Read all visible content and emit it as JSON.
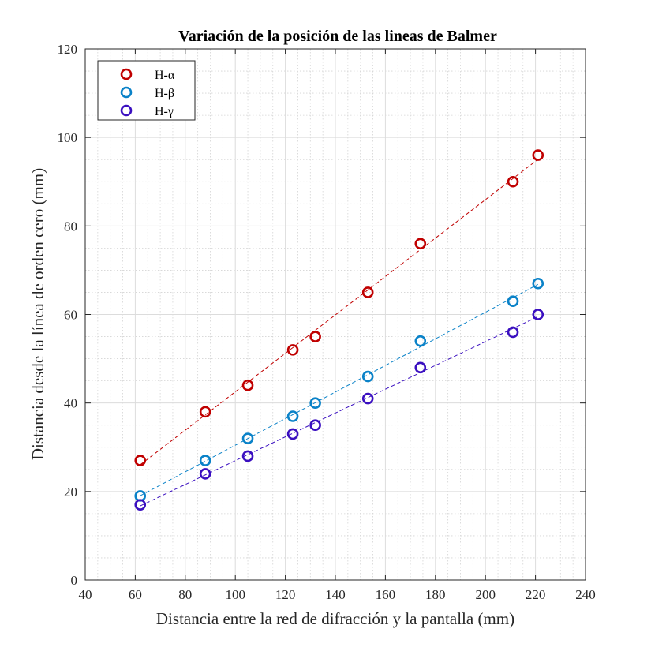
{
  "chart_data": {
    "type": "scatter",
    "title": "Variación de la posición de las lineas de Balmer",
    "xlabel": "Distancia entre la red de difracción y la pantalla (mm)",
    "ylabel": "Distancia desde la línea de orden cero (mm)",
    "xlim": [
      40,
      240
    ],
    "ylim": [
      0,
      120
    ],
    "xticks": [
      40,
      60,
      80,
      100,
      120,
      140,
      160,
      180,
      200,
      220,
      240
    ],
    "yticks": [
      0,
      20,
      40,
      60,
      80,
      100,
      120
    ],
    "grid": true,
    "minor_grid": true,
    "legend_position": "top-left",
    "series": [
      {
        "name": "H-α",
        "color": "#c00000",
        "x": [
          62,
          88,
          105,
          123,
          132,
          153,
          174,
          211,
          221
        ],
        "y": [
          27,
          38,
          44,
          52,
          55,
          65,
          76,
          90,
          96
        ],
        "fit_line": "dashed"
      },
      {
        "name": "H-β",
        "color": "#0a82c8",
        "x": [
          62,
          88,
          105,
          123,
          132,
          153,
          174,
          211,
          221
        ],
        "y": [
          19,
          27,
          32,
          37,
          40,
          46,
          54,
          63,
          67
        ],
        "fit_line": "dashed"
      },
      {
        "name": "H-γ",
        "color": "#3a0fc0",
        "x": [
          62,
          88,
          105,
          123,
          132,
          153,
          174,
          211,
          221
        ],
        "y": [
          17,
          24,
          28,
          33,
          35,
          41,
          48,
          56,
          60
        ],
        "fit_line": "dashed"
      }
    ]
  }
}
